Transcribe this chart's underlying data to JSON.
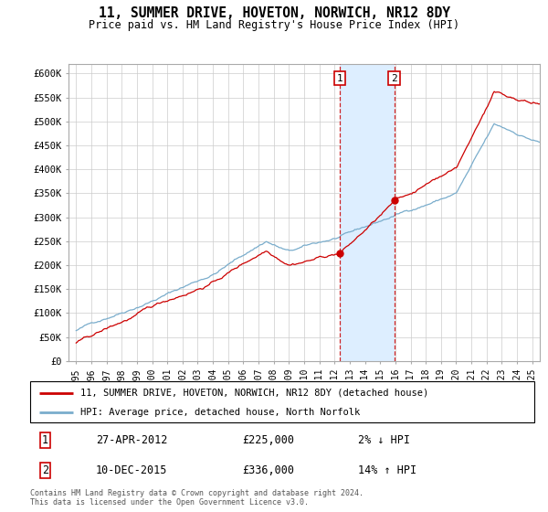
{
  "title": "11, SUMMER DRIVE, HOVETON, NORWICH, NR12 8DY",
  "subtitle": "Price paid vs. HM Land Registry's House Price Index (HPI)",
  "legend_line1": "11, SUMMER DRIVE, HOVETON, NORWICH, NR12 8DY (detached house)",
  "legend_line2": "HPI: Average price, detached house, North Norfolk",
  "transaction1_date": "27-APR-2012",
  "transaction1_price": "£225,000",
  "transaction1_hpi": "2% ↓ HPI",
  "transaction2_date": "10-DEC-2015",
  "transaction2_price": "£336,000",
  "transaction2_hpi": "14% ↑ HPI",
  "footnote": "Contains HM Land Registry data © Crown copyright and database right 2024.\nThis data is licensed under the Open Government Licence v3.0.",
  "ylim": [
    0,
    620000
  ],
  "yticks": [
    0,
    50000,
    100000,
    150000,
    200000,
    250000,
    300000,
    350000,
    400000,
    450000,
    500000,
    550000,
    600000
  ],
  "ytick_labels": [
    "£0",
    "£50K",
    "£100K",
    "£150K",
    "£200K",
    "£250K",
    "£300K",
    "£350K",
    "£400K",
    "£450K",
    "£500K",
    "£550K",
    "£600K"
  ],
  "red_color": "#cc0000",
  "blue_color": "#7aadcc",
  "shade_color": "#ddeeff",
  "transaction1_x": 2012.33,
  "transaction1_y": 225000,
  "transaction2_x": 2015.92,
  "transaction2_y": 336000,
  "xlim_start": 1994.5,
  "xlim_end": 2025.5,
  "background_color": "#ffffff",
  "grid_color": "#cccccc",
  "spine_color": "#aaaaaa"
}
